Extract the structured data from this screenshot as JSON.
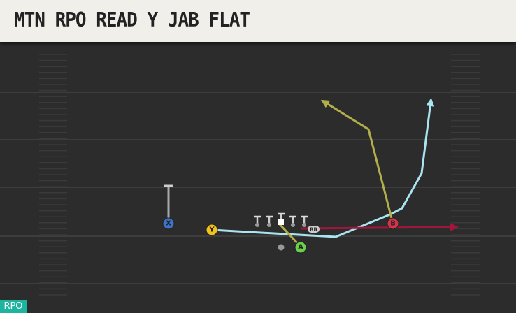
{
  "header": {
    "title": "MTN RPO READ Y JAB FLAT"
  },
  "nodes": [
    {
      "label": "X"
    },
    {
      "label": "Y"
    },
    {
      "label": "A"
    },
    {
      "label": "B"
    }
  ],
  "rb_label": "RB",
  "tag": "RPO"
}
